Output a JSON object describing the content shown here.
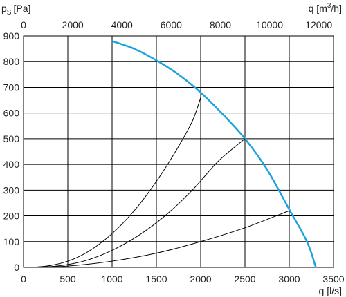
{
  "chart_data": {
    "type": "line",
    "title": "",
    "ylabel_main": "p",
    "ylabel_sub": "S",
    "ylabel_unit": "[Pa]",
    "xlabel_bottom": "q [l/s]",
    "xlabel_top_prefix": "q [m",
    "xlabel_top_sup": "3",
    "xlabel_top_suffix": "/h]",
    "xlim": [
      0,
      3500
    ],
    "ylim": [
      0,
      900
    ],
    "x_ticks_bottom": [
      "0",
      "500",
      "1000",
      "1500",
      "2000",
      "2500",
      "3000",
      "3500"
    ],
    "x_ticks_top": [
      "0",
      "2000",
      "4000",
      "6000",
      "8000",
      "10000",
      "12000"
    ],
    "y_ticks": [
      "0",
      "100",
      "200",
      "300",
      "400",
      "500",
      "600",
      "700",
      "800",
      "900"
    ],
    "grid": true,
    "colors": {
      "fan_curve": "#1aa3dc",
      "system_curve": "#000000",
      "grid": "#000000"
    },
    "series": [
      {
        "kind": "fan",
        "x": [
          1000,
          1250,
          1500,
          1750,
          2000,
          2250,
          2500,
          2750,
          3000,
          3200,
          3300
        ],
        "y": [
          880,
          850,
          805,
          750,
          680,
          595,
          500,
          380,
          225,
          100,
          0
        ]
      },
      {
        "kind": "system",
        "x": [
          100,
          300,
          500,
          700,
          900,
          1100,
          1300,
          1500,
          1700,
          1900,
          2000
        ],
        "y": [
          0,
          7,
          24,
          55,
          102,
          164,
          241,
          334,
          441,
          564,
          660
        ]
      },
      {
        "kind": "system",
        "x": [
          100,
          400,
          700,
          1000,
          1300,
          1600,
          1900,
          2200,
          2500
        ],
        "y": [
          0,
          6,
          26,
          66,
          124,
          201,
          298,
          413,
          500
        ]
      },
      {
        "kind": "system",
        "x": [
          100,
          500,
          1000,
          1500,
          2000,
          2500,
          3000
        ],
        "y": [
          0,
          5,
          24,
          55,
          100,
          154,
          220
        ]
      }
    ]
  }
}
